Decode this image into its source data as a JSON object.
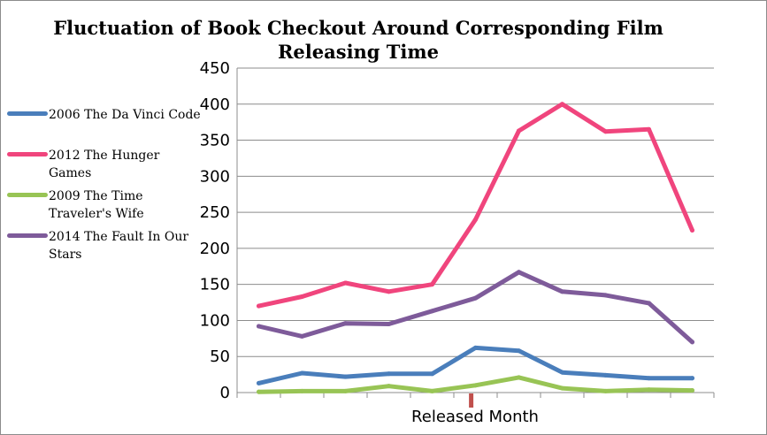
{
  "chart_data": {
    "type": "line",
    "title_lines": [
      "Fluctuation of Book Checkout Around Corresponding Film",
      "Releasing Time"
    ],
    "xlabel": "Released Month",
    "ylabel": "",
    "ylim": [
      0,
      450
    ],
    "yticks": [
      0,
      50,
      100,
      150,
      200,
      250,
      300,
      350,
      400,
      450
    ],
    "num_points": 11,
    "release_index": 5,
    "grid": "horizontal",
    "legend_position": "left",
    "series": [
      {
        "name": "2006 The Da Vinci Code",
        "label_lines": [
          "2006 The Da Vinci Code"
        ],
        "color": "#4a7ebb",
        "values": [
          13,
          27,
          22,
          26,
          26,
          62,
          58,
          28,
          24,
          20,
          20
        ]
      },
      {
        "name": "2012 The Hunger Games",
        "label_lines": [
          "2012 The Hunger",
          "Games"
        ],
        "color": "#f0457d",
        "values": [
          120,
          133,
          152,
          140,
          150,
          240,
          363,
          400,
          362,
          365,
          225
        ]
      },
      {
        "name": "2009 The Time Traveler's Wife",
        "label_lines": [
          "2009 The Time",
          "Traveler's Wife"
        ],
        "color": "#98c455",
        "values": [
          1,
          2,
          2,
          9,
          2,
          10,
          21,
          6,
          2,
          4,
          3
        ]
      },
      {
        "name": "2014 The Fault In Our Stars",
        "label_lines": [
          "2014 The Fault In Our",
          "Stars"
        ],
        "color": "#7e5b9a",
        "values": [
          92,
          78,
          96,
          95,
          113,
          131,
          167,
          140,
          135,
          124,
          70
        ]
      }
    ],
    "release_marker_color": "#c0504d"
  }
}
